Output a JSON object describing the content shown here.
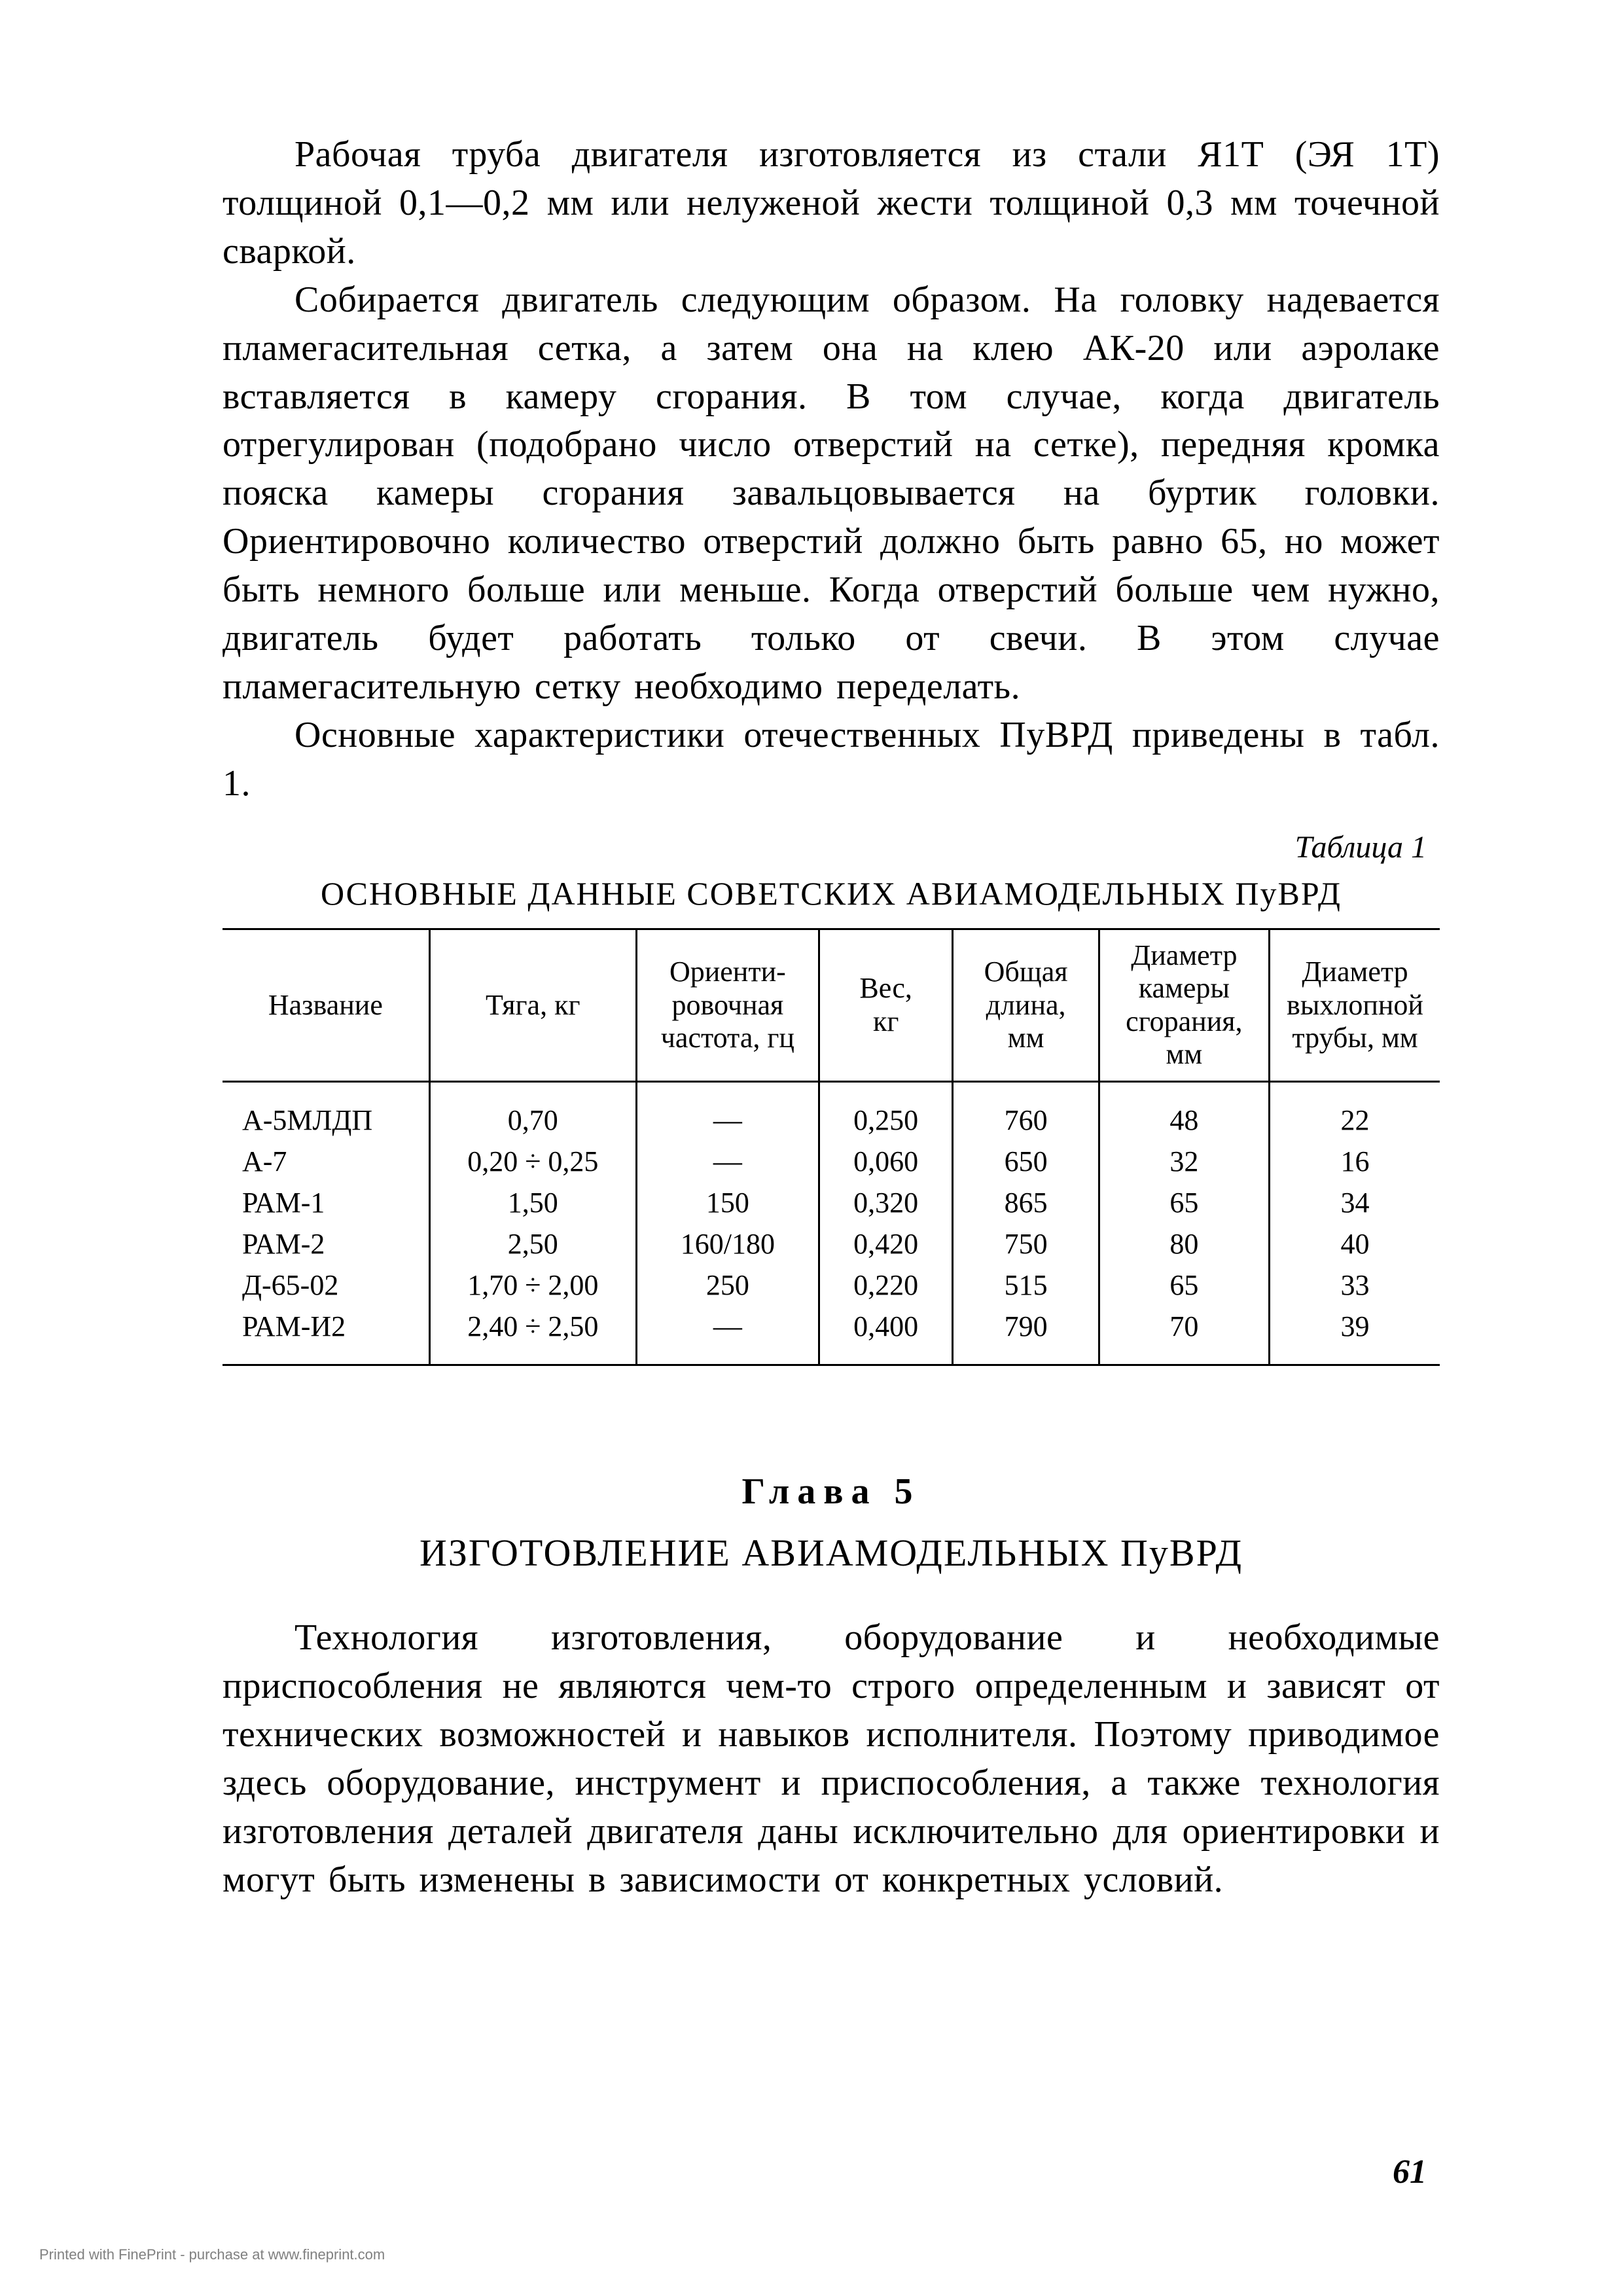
{
  "paragraphs": {
    "p1": "Рабочая труба двигателя изготовляется из стали Я1Т (ЭЯ 1Т) толщиной 0,1—0,2 мм или нелуженой жести толщиной 0,3 мм точечной сваркой.",
    "p2": "Собирается двигатель следующим образом. На головку надевается пламегасительная сетка, а затем она на клею АК-20 или аэролаке вставляется в камеру сгорания. В том случае, когда двигатель отрегулирован (подобрано число отверстий на сетке), передняя кромка пояска камеры сгорания завальцовывается на буртик головки. Ориентировочно количество отверстий должно быть равно 65, но может быть немного больше или меньше. Когда отверстий больше чем нужно, двигатель будет работать только от свечи. В этом случае пламегасительную сетку необходимо переделать.",
    "p3": "Основные характеристики отечественных ПуВРД приведены в табл. 1.",
    "p4": "Технология изготовления, оборудование и необходимые приспособления не являются чем-то строго определенным и зависят от технических возможностей и навыков исполнителя. Поэтому приводимое здесь оборудование, инструмент и приспособления, а также технология изготовления деталей двигателя даны исключительно для ориентировки и могут быть изменены в зависимости от конкретных условий."
  },
  "table": {
    "label": "Таблица 1",
    "title": "ОСНОВНЫЕ ДАННЫЕ СОВЕТСКИХ АВИАМОДЕЛЬНЫХ ПуВРД",
    "columns": [
      "Название",
      "Тяга, кг",
      "Ориенти-\nровочная\nчастота, гц",
      "Вес,\nкг",
      "Общая\nдлина,\nмм",
      "Диаметр\nкамеры\nсгорания,\nмм",
      "Диаметр\nвыхлопной\nтрубы, мм"
    ],
    "rows": [
      [
        "А-5МЛДП",
        "0,70",
        "—",
        "0,250",
        "760",
        "48",
        "22"
      ],
      [
        "А-7",
        "0,20 ÷ 0,25",
        "—",
        "0,060",
        "650",
        "32",
        "16"
      ],
      [
        "РАМ-1",
        "1,50",
        "150",
        "0,320",
        "865",
        "65",
        "34"
      ],
      [
        "РАМ-2",
        "2,50",
        "160/180",
        "0,420",
        "750",
        "80",
        "40"
      ],
      [
        "Д-65-02",
        "1,70 ÷ 2,00",
        "250",
        "0,220",
        "515",
        "65",
        "33"
      ],
      [
        "РАМ-И2",
        "2,40 ÷ 2,50",
        "—",
        "0,400",
        "790",
        "70",
        "39"
      ]
    ]
  },
  "chapter": {
    "label": "Глава 5",
    "title": "ИЗГОТОВЛЕНИЕ АВИАМОДЕЛЬНЫХ ПуВРД"
  },
  "page_number": "61",
  "footer_note": "Printed with FinePrint - purchase at www.fineprint.com"
}
